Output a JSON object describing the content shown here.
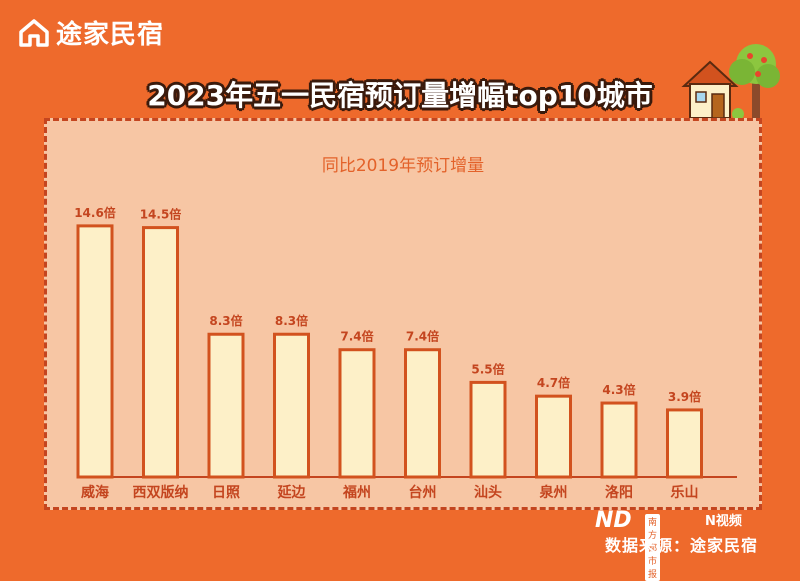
{
  "brand": {
    "name": "途家民宿"
  },
  "header": {
    "title": "2023年五一民宿预订量增幅top10城市"
  },
  "footer": {
    "logo_text": "ND",
    "logo_badge": "南方都市报",
    "video_label": "N视频",
    "source": "数据来源：途家民宿"
  },
  "chart_data": {
    "type": "bar",
    "title": "同比2019年预订增量",
    "categories": [
      "威海",
      "西双版纳",
      "日照",
      "延边",
      "福州",
      "台州",
      "汕头",
      "泉州",
      "洛阳",
      "乐山"
    ],
    "values": [
      14.6,
      14.5,
      8.3,
      8.3,
      7.4,
      7.4,
      5.5,
      4.7,
      4.3,
      3.9
    ],
    "value_labels": [
      "14.6倍",
      "14.5倍",
      "8.3倍",
      "8.3倍",
      "7.4倍",
      "7.4倍",
      "5.5倍",
      "4.7倍",
      "4.3倍",
      "3.9倍"
    ],
    "unit": "倍",
    "ylim": [
      0,
      15
    ],
    "grid": false,
    "colors": {
      "bar_fill": "#FDF0C8",
      "bar_stroke": "#D2521E",
      "label": "#C4451F",
      "axis": "#C4451F"
    }
  }
}
